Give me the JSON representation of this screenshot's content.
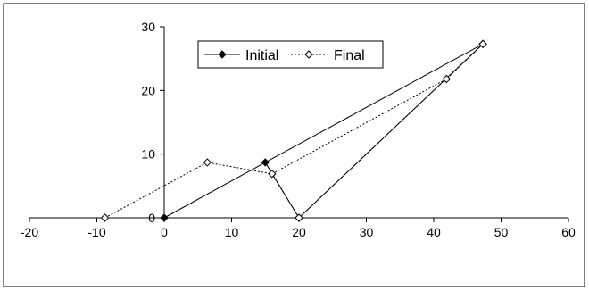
{
  "chart_data": {
    "type": "scatter",
    "xlim": [
      -20,
      60
    ],
    "ylim": [
      0,
      30
    ],
    "x_ticks": [
      "-20",
      "-10",
      "0",
      "10",
      "20",
      "30",
      "40",
      "50",
      "60"
    ],
    "y_ticks": [
      "0",
      "10",
      "20",
      "30"
    ],
    "grid": false,
    "legend_position": "top-center",
    "series": [
      {
        "name": "Initial",
        "line_style": "solid",
        "marker": "filled-diamond",
        "color": "#000000",
        "points": [
          [
            0,
            0
          ],
          [
            15,
            8.7
          ],
          [
            47.3,
            27.3
          ],
          [
            20,
            0
          ],
          [
            15,
            8.7
          ]
        ]
      },
      {
        "name": "Final",
        "line_style": "dotted",
        "marker": "open-diamond",
        "color": "#000000",
        "points": [
          [
            -8.8,
            0
          ],
          [
            6.4,
            8.7
          ],
          [
            16,
            6.9
          ],
          [
            41.9,
            21.8
          ],
          [
            47.3,
            27.3
          ],
          [
            20,
            0
          ],
          [
            16,
            6.9
          ]
        ]
      }
    ]
  }
}
